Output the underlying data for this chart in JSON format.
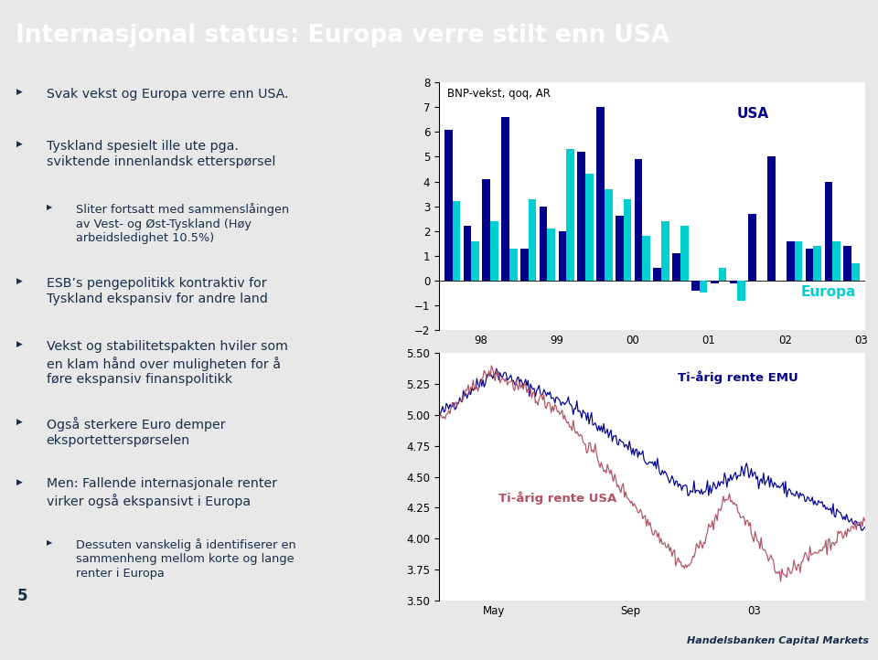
{
  "title": "Internasjonal status: Europa verre stilt enn USA",
  "title_bg": "#8fa3b8",
  "title_color": "white",
  "slide_bg": "#e8e8e8",
  "content_bg": "#ffffff",
  "bullet_color": "#1a2e4a",
  "page_number": "5",
  "bullets": [
    {
      "level": 0,
      "text": "Svak vekst og Europa verre enn USA."
    },
    {
      "level": 0,
      "text": "Tyskland spesielt ille ute pga.\nsviktende innenlandsk etterspørsel"
    },
    {
      "level": 1,
      "text": "Sliter fortsatt med sammenslåingen\nav Vest- og Øst-Tyskland (Høy\narbeidsledighet 10.5%)"
    },
    {
      "level": 0,
      "text": "ESB’s pengepolitikk kontraktiv for\nTyskland ekspansiv for andre land"
    },
    {
      "level": 0,
      "text": "Vekst og stabilitetspakten hviler som\nen klam hånd over muligheten for å\nføre ekspansiv finanspolitikk"
    },
    {
      "level": 0,
      "text": "Også sterkere Euro demper\neksportetterspørselen"
    },
    {
      "level": 0,
      "text": "Men: Fallende internasjonale renter\nvirker også ekspansivt i Europa"
    },
    {
      "level": 1,
      "text": "Dessuten vanskelig å identifiserer en\nsammenheng mellom korte og lange\nrenter i Europa"
    }
  ],
  "bar_chart": {
    "chart_title": "BNP-vekst, qoq, AR",
    "usa_color": "#00008b",
    "europa_color": "#00ced1",
    "usa_label": "USA",
    "europa_label": "Europa",
    "ylim": [
      -2,
      8
    ],
    "yticks": [
      -2,
      -1,
      0,
      1,
      2,
      3,
      4,
      5,
      6,
      7,
      8
    ],
    "xtick_labels": [
      "98",
      "99",
      "00",
      "01",
      "02",
      "03"
    ],
    "xtick_positions": [
      1.5,
      5.5,
      9.5,
      13.5,
      17.5,
      21.5
    ],
    "usa_values": [
      6.1,
      2.2,
      4.1,
      6.6,
      1.3,
      3.0,
      2.0,
      5.2,
      7.0,
      2.6,
      4.9,
      0.5,
      1.1,
      -0.4,
      -0.1,
      -0.1,
      2.7,
      5.0,
      1.6,
      1.3,
      4.0,
      1.4
    ],
    "europa_values": [
      3.2,
      1.6,
      2.4,
      1.3,
      3.3,
      2.1,
      5.3,
      4.3,
      3.7,
      3.3,
      1.8,
      2.4,
      2.2,
      -0.5,
      0.5,
      -0.8,
      0.0,
      0.0,
      1.6,
      1.4,
      1.6,
      0.7
    ]
  },
  "line_chart": {
    "emu_color": "#00008b",
    "usa_color": "#b05060",
    "emu_label": "Ti-årig rente EMU",
    "usa_label": "Ti-årig rente USA",
    "ylim": [
      3.5,
      5.5
    ],
    "yticks": [
      3.5,
      3.75,
      4.0,
      4.25,
      4.5,
      4.75,
      5.0,
      5.25,
      5.5
    ],
    "xtick_labels": [
      "May",
      "Sep",
      "03"
    ]
  },
  "logo_text": "Handelsbanken Capital Markets"
}
